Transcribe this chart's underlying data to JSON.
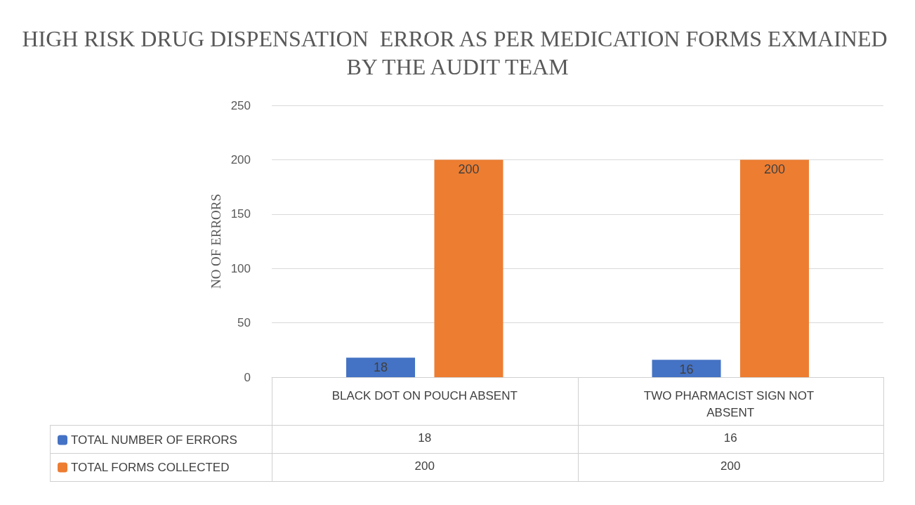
{
  "chart_data": {
    "type": "bar",
    "title": "HIGH RISK DRUG DISPENSATION  ERROR AS PER MEDICATION FORMS EXMAINED BY THE AUDIT TEAM",
    "ylabel": "NO OF ERRORS",
    "categories": [
      "BLACK DOT ON POUCH ABSENT",
      "TWO PHARMACIST SIGN NOT ABSENT"
    ],
    "series": [
      {
        "name": "TOTAL NUMBER OF ERRORS",
        "color": "#4472c4",
        "values": [
          18,
          16
        ],
        "value_labels": [
          "18",
          "16"
        ]
      },
      {
        "name": "TOTAL FORMS COLLECTED",
        "color": "#ed7d31",
        "values": [
          200,
          200
        ],
        "value_labels": [
          "200",
          "200"
        ]
      }
    ],
    "annotations": [
      "18",
      "16",
      "200",
      "200"
    ],
    "ylim": [
      0,
      250
    ],
    "yticks": [
      0,
      50,
      100,
      150,
      200,
      250
    ],
    "grid": "y",
    "legend": "bottom left",
    "data_labels": true
  }
}
